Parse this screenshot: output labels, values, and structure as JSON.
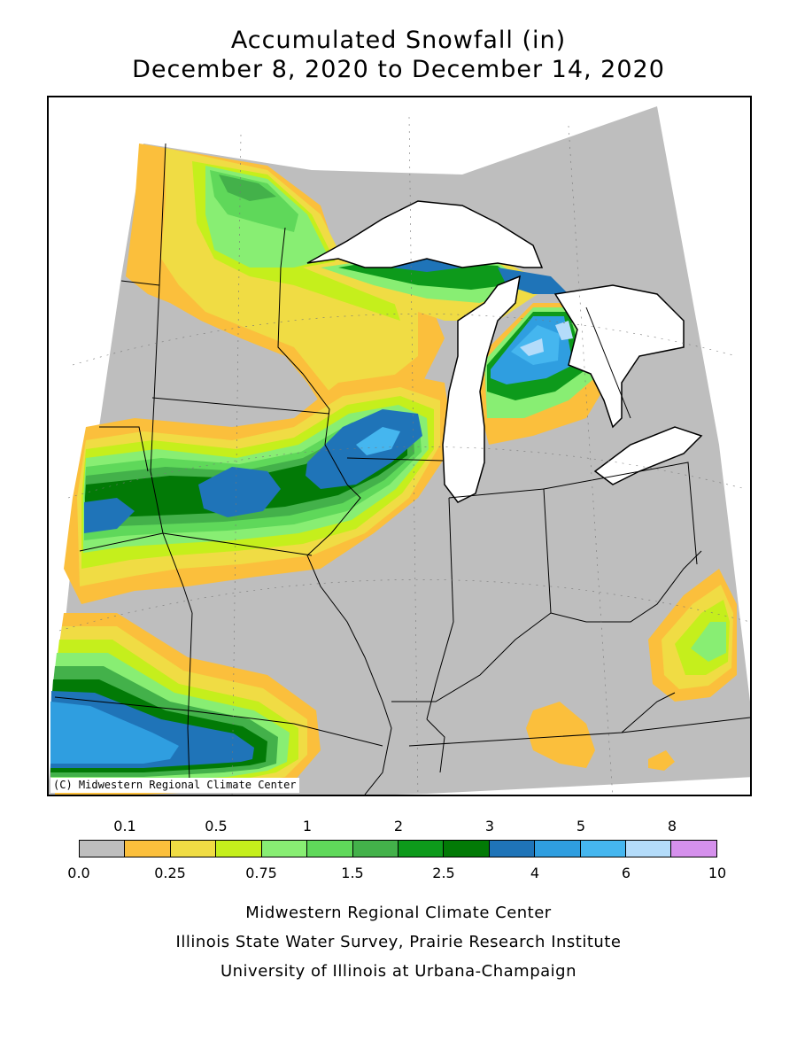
{
  "title_line1": "Accumulated Snowfall (in)",
  "title_line2": "December 8, 2020 to December 14, 2020",
  "copyright": "(C) Midwestern Regional Climate Center",
  "legend": {
    "upper_labels": [
      "0.1",
      "0.5",
      "1",
      "2",
      "3",
      "5",
      "8"
    ],
    "lower_labels": [
      "0.0",
      "0.25",
      "0.75",
      "1.5",
      "2.5",
      "4",
      "6",
      "10"
    ],
    "bins": [
      {
        "range": "0.0-0.1",
        "color": "#bebebe"
      },
      {
        "range": "0.1-0.25",
        "color": "#fbbf3c"
      },
      {
        "range": "0.25-0.5",
        "color": "#f0dc44"
      },
      {
        "range": "0.5-0.75",
        "color": "#c5ef1c"
      },
      {
        "range": "0.75-1",
        "color": "#88ee73"
      },
      {
        "range": "1-1.5",
        "color": "#5fd85a"
      },
      {
        "range": "1.5-2",
        "color": "#43b14a"
      },
      {
        "range": "2-2.5",
        "color": "#0d9a1b"
      },
      {
        "range": "2.5-3",
        "color": "#027a06"
      },
      {
        "range": "3-4",
        "color": "#1f74b8"
      },
      {
        "range": "4-5",
        "color": "#2f9ee0"
      },
      {
        "range": "5-6",
        "color": "#45b6ef"
      },
      {
        "range": "6-8",
        "color": "#b4dcfa"
      },
      {
        "range": "8-10",
        "color": "#d590ec"
      }
    ]
  },
  "credits": [
    "Midwestern Regional Climate Center",
    "Illinois State Water Survey, Prairie Research Institute",
    "University of Illinois at Urbana-Champaign"
  ]
}
